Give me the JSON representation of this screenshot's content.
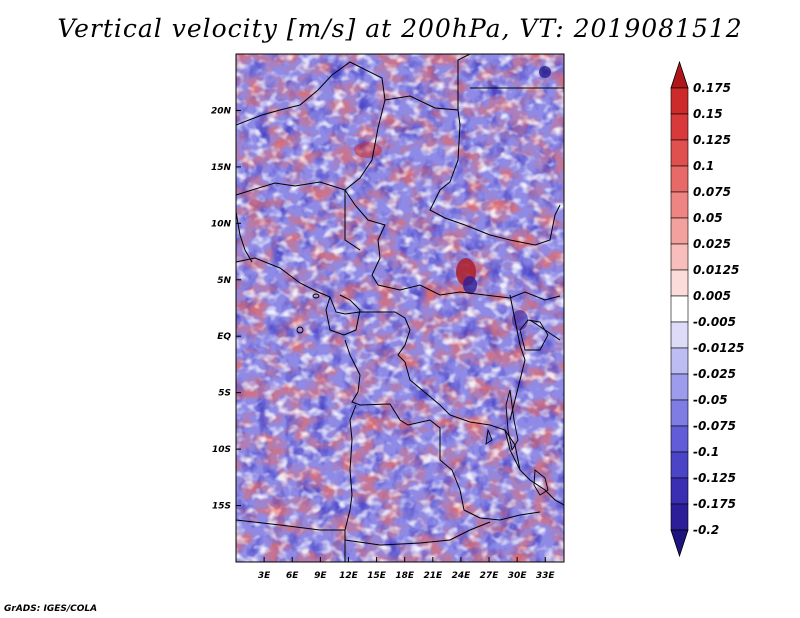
{
  "title": "Vertical velocity [m/s] at 200hPa, VT: 2019081512",
  "credit": "GrADS: IGES/COLA",
  "map": {
    "lon_range": [
      0,
      35
    ],
    "lat_range": [
      -20,
      25
    ],
    "lon_ticks": [
      "3E",
      "6E",
      "9E",
      "12E",
      "15E",
      "18E",
      "21E",
      "24E",
      "27E",
      "30E",
      "33E"
    ],
    "lon_tick_values": [
      3,
      6,
      9,
      12,
      15,
      18,
      21,
      24,
      27,
      30,
      33
    ],
    "lat_ticks": [
      "20N",
      "15N",
      "10N",
      "5N",
      "EQ",
      "5S",
      "10S",
      "15S"
    ],
    "lat_tick_values": [
      20,
      15,
      10,
      5,
      0,
      -5,
      -10,
      -15
    ]
  },
  "colorbar": {
    "levels": [
      "0.175",
      "0.15",
      "0.125",
      "0.1",
      "0.075",
      "0.05",
      "0.025",
      "0.0125",
      "0.005",
      "-0.005",
      "-0.0125",
      "-0.025",
      "-0.05",
      "-0.075",
      "-0.1",
      "-0.125",
      "-0.175",
      "-0.2"
    ],
    "colors": [
      "#b0171b",
      "#cc2a2b",
      "#d8393a",
      "#e0504f",
      "#e86a68",
      "#ef8582",
      "#f3a19e",
      "#f7bebb",
      "#fbdcda",
      "#ffffff",
      "#dcdcf8",
      "#bdbdf3",
      "#9d9bec",
      "#7f7ce3",
      "#615dd8",
      "#4a44c7",
      "#3a2fb2",
      "#2c1e99",
      "#1f1380"
    ]
  },
  "chart_data": {
    "type": "heatmap",
    "variable": "Vertical velocity",
    "units": "m/s",
    "level": "200hPa",
    "valid_time": "2019081512",
    "x_range_deg_lon": [
      0,
      35
    ],
    "y_range_deg_lat": [
      -20,
      25
    ]
  }
}
